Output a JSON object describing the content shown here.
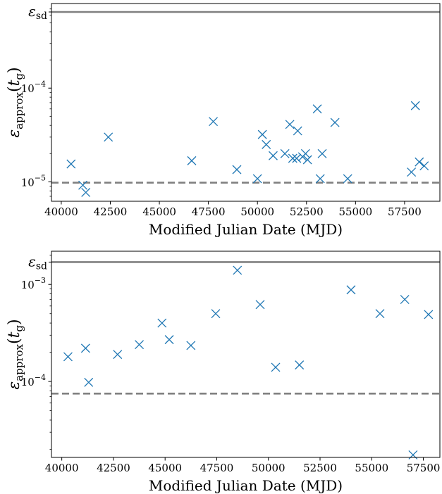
{
  "chart_data": [
    {
      "type": "scatter",
      "scale_y": "log",
      "xlim": [
        39500,
        59300
      ],
      "ylim": [
        6.2e-06,
        0.0008
      ],
      "x_ticks": [
        40000,
        42500,
        45000,
        47500,
        50000,
        52500,
        55000,
        57500
      ],
      "y_ticks": [
        1e-05,
        0.0001
      ],
      "y_tick_labels": [
        {
          "base": "10",
          "exp": "−5"
        },
        {
          "base": "10",
          "exp": "−4"
        }
      ],
      "xlabel": "Modified Julian Date (MJD)",
      "ylabel": {
        "main": "ε",
        "sub": "approx",
        "arg": "t",
        "argsub": "g"
      },
      "ref_lines": [
        {
          "kind": "solid",
          "y": 0.00065,
          "label": {
            "main": "ε",
            "sub": "sd"
          },
          "color": "#808080"
        },
        {
          "kind": "dashed",
          "y": 9.8e-06,
          "color": "#808080"
        }
      ],
      "marker_color": "#1f77b4",
      "points": [
        {
          "x": 40500,
          "y": 1.55e-05
        },
        {
          "x": 41100,
          "y": 9.2e-06
        },
        {
          "x": 41250,
          "y": 7.7e-06
        },
        {
          "x": 42400,
          "y": 3e-05
        },
        {
          "x": 46650,
          "y": 1.68e-05
        },
        {
          "x": 47750,
          "y": 4.4e-05
        },
        {
          "x": 48950,
          "y": 1.35e-05
        },
        {
          "x": 50000,
          "y": 1.08e-05
        },
        {
          "x": 50250,
          "y": 3.2e-05
        },
        {
          "x": 50450,
          "y": 2.5e-05
        },
        {
          "x": 50800,
          "y": 1.9e-05
        },
        {
          "x": 51400,
          "y": 2e-05
        },
        {
          "x": 51650,
          "y": 4.1e-05
        },
        {
          "x": 51800,
          "y": 1.78e-05
        },
        {
          "x": 52000,
          "y": 1.78e-05
        },
        {
          "x": 52050,
          "y": 3.5e-05
        },
        {
          "x": 52300,
          "y": 1.85e-05
        },
        {
          "x": 52450,
          "y": 2e-05
        },
        {
          "x": 52550,
          "y": 1.72e-05
        },
        {
          "x": 53050,
          "y": 6e-05
        },
        {
          "x": 53200,
          "y": 1.08e-05
        },
        {
          "x": 53300,
          "y": 2e-05
        },
        {
          "x": 53950,
          "y": 4.3e-05
        },
        {
          "x": 54600,
          "y": 1.08e-05
        },
        {
          "x": 57850,
          "y": 1.27e-05
        },
        {
          "x": 58050,
          "y": 6.5e-05
        },
        {
          "x": 58250,
          "y": 1.63e-05
        },
        {
          "x": 58500,
          "y": 1.48e-05
        }
      ]
    },
    {
      "type": "scatter",
      "scale_y": "log",
      "xlim": [
        39500,
        58300
      ],
      "ylim": [
        1.65e-05,
        0.0022
      ],
      "x_ticks": [
        40000,
        42500,
        45000,
        47500,
        50000,
        52500,
        55000,
        57500
      ],
      "y_ticks": [
        0.0001,
        0.001
      ],
      "y_tick_labels": [
        {
          "base": "10",
          "exp": "−4"
        },
        {
          "base": "10",
          "exp": "−3"
        }
      ],
      "xlabel": "Modified Julian Date (MJD)",
      "ylabel": {
        "main": "ε",
        "sub": "approx",
        "arg": "t",
        "argsub": "g"
      },
      "ref_lines": [
        {
          "kind": "solid",
          "y": 0.0017,
          "label": {
            "main": "ε",
            "sub": "sd"
          },
          "color": "#808080"
        },
        {
          "kind": "dashed",
          "y": 7.5e-05,
          "color": "#808080"
        }
      ],
      "marker_color": "#1f77b4",
      "points": [
        {
          "x": 40300,
          "y": 0.00018
        },
        {
          "x": 41150,
          "y": 0.00022
        },
        {
          "x": 41300,
          "y": 9.8e-05
        },
        {
          "x": 42700,
          "y": 0.00019
        },
        {
          "x": 43750,
          "y": 0.00024
        },
        {
          "x": 44850,
          "y": 0.0004
        },
        {
          "x": 45200,
          "y": 0.00027
        },
        {
          "x": 46250,
          "y": 0.000235
        },
        {
          "x": 47450,
          "y": 0.0005
        },
        {
          "x": 48500,
          "y": 0.0014
        },
        {
          "x": 49600,
          "y": 0.00062
        },
        {
          "x": 50350,
          "y": 0.00014
        },
        {
          "x": 51500,
          "y": 0.000148
        },
        {
          "x": 54000,
          "y": 0.00088
        },
        {
          "x": 55400,
          "y": 0.0005
        },
        {
          "x": 56600,
          "y": 0.0007
        },
        {
          "x": 57000,
          "y": 1.75e-05
        },
        {
          "x": 57750,
          "y": 0.00049
        }
      ]
    }
  ]
}
